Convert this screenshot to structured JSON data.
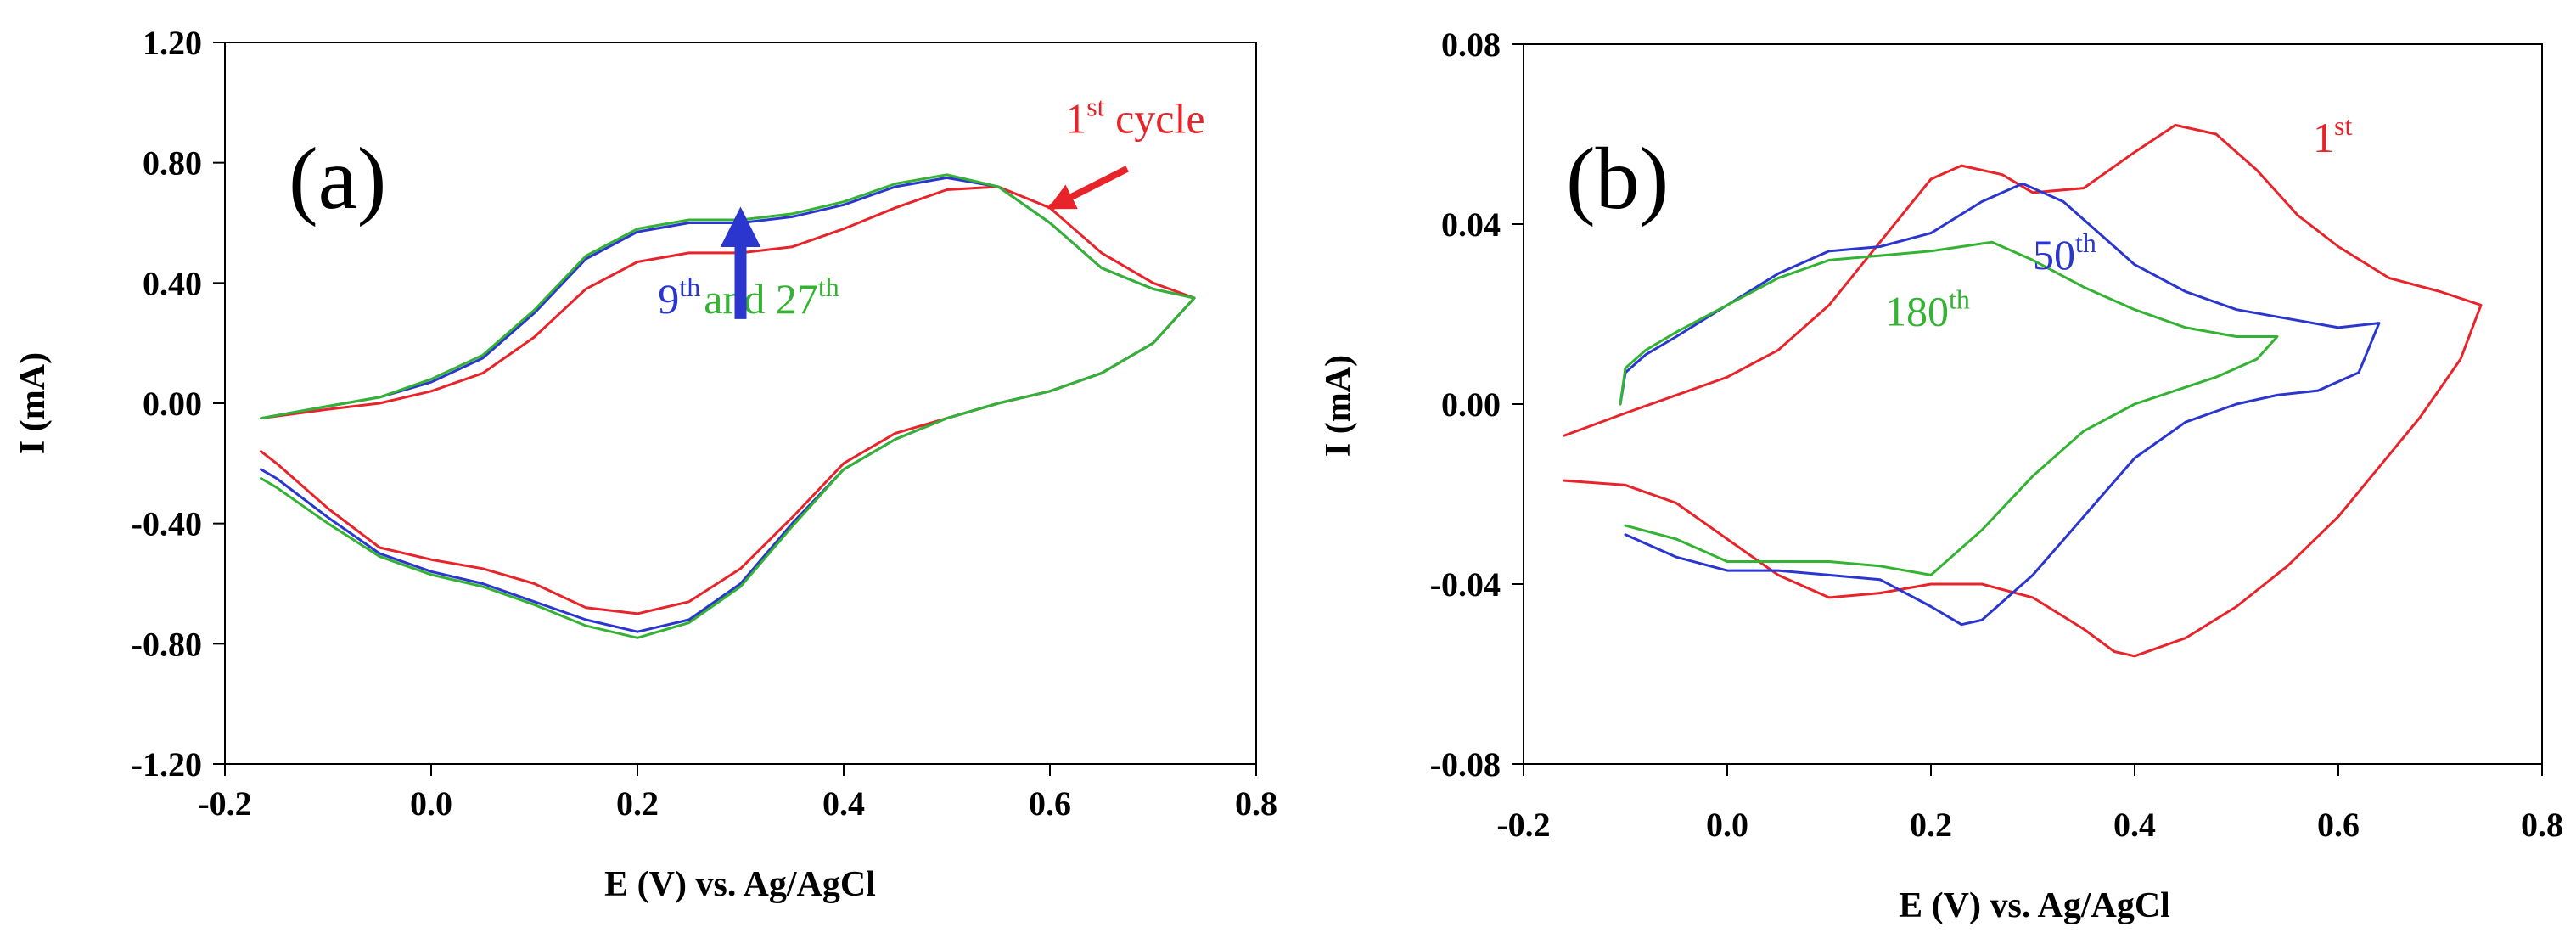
{
  "chart_data": [
    {
      "type": "line",
      "panel_label": "(a)",
      "xlabel": "E (V) vs. Ag/AgCl",
      "ylabel": "I (mA)",
      "xlim": [
        -0.2,
        0.8
      ],
      "ylim": [
        -1.2,
        1.2
      ],
      "xticks": [
        -0.2,
        0.0,
        0.2,
        0.4,
        0.6,
        0.8
      ],
      "yticks": [
        -1.2,
        -0.8,
        -0.4,
        0.0,
        0.4,
        0.8,
        1.2
      ],
      "xtick_labels": [
        "-0.2",
        "0.0",
        "0.2",
        "0.4",
        "0.6",
        "0.8"
      ],
      "ytick_labels": [
        "-1.20",
        "-0.80",
        "-0.40",
        "0.00",
        "0.40",
        "0.80",
        "1.20"
      ],
      "grid": false,
      "annotations": [
        {
          "id": "first",
          "base": "1",
          "sup": "st",
          "after": " cycle",
          "color": "#e8242b",
          "x": 0.615,
          "y": 0.9,
          "arrow": {
            "from": [
              0.675,
              0.78
            ],
            "to": [
              0.6,
              0.65
            ],
            "color": "#e8242b"
          }
        },
        {
          "id": "ninth",
          "base": "9",
          "sup": "th",
          "color": "#2b36cf",
          "x": 0.22,
          "y": 0.3
        },
        {
          "id": "and27",
          "base": " and 27",
          "sup": "th",
          "color": "#34b233",
          "x": 0.27,
          "y": 0.3
        },
        {
          "id": "bluearrow",
          "arrow": {
            "from": [
              0.3,
              0.28
            ],
            "to": [
              0.3,
              0.6
            ],
            "color": "#2b36cf"
          }
        }
      ],
      "series": [
        {
          "name": "1st cycle",
          "color": "#e8242b",
          "x": [
            -0.165,
            -0.1,
            -0.05,
            0.0,
            0.05,
            0.1,
            0.15,
            0.2,
            0.25,
            0.3,
            0.35,
            0.4,
            0.45,
            0.5,
            0.55,
            0.6,
            0.65,
            0.7,
            0.74,
            0.7,
            0.65,
            0.6,
            0.55,
            0.5,
            0.45,
            0.4,
            0.35,
            0.3,
            0.25,
            0.2,
            0.15,
            0.1,
            0.05,
            0.0,
            -0.05,
            -0.1,
            -0.15,
            -0.165
          ],
          "y": [
            -0.05,
            -0.02,
            0.0,
            0.04,
            0.1,
            0.22,
            0.38,
            0.47,
            0.5,
            0.5,
            0.52,
            0.58,
            0.65,
            0.71,
            0.72,
            0.65,
            0.5,
            0.4,
            0.35,
            0.2,
            0.1,
            0.04,
            0.0,
            -0.05,
            -0.1,
            -0.2,
            -0.38,
            -0.55,
            -0.66,
            -0.7,
            -0.68,
            -0.6,
            -0.55,
            -0.52,
            -0.48,
            -0.35,
            -0.2,
            -0.16
          ]
        },
        {
          "name": "9th",
          "color": "#2b36cf",
          "x": [
            -0.165,
            -0.1,
            -0.05,
            0.0,
            0.05,
            0.1,
            0.15,
            0.2,
            0.25,
            0.3,
            0.35,
            0.4,
            0.45,
            0.5,
            0.55,
            0.6,
            0.65,
            0.7,
            0.74,
            0.7,
            0.65,
            0.6,
            0.55,
            0.5,
            0.45,
            0.4,
            0.35,
            0.3,
            0.25,
            0.2,
            0.15,
            0.1,
            0.05,
            0.0,
            -0.05,
            -0.1,
            -0.15,
            -0.165
          ],
          "y": [
            -0.05,
            -0.01,
            0.02,
            0.07,
            0.15,
            0.3,
            0.48,
            0.57,
            0.6,
            0.6,
            0.62,
            0.66,
            0.72,
            0.75,
            0.72,
            0.6,
            0.45,
            0.38,
            0.35,
            0.2,
            0.1,
            0.04,
            0.0,
            -0.05,
            -0.12,
            -0.22,
            -0.4,
            -0.6,
            -0.72,
            -0.76,
            -0.72,
            -0.66,
            -0.6,
            -0.56,
            -0.5,
            -0.38,
            -0.25,
            -0.22
          ]
        },
        {
          "name": "27th",
          "color": "#34b233",
          "x": [
            -0.165,
            -0.1,
            -0.05,
            0.0,
            0.05,
            0.1,
            0.15,
            0.2,
            0.25,
            0.3,
            0.35,
            0.4,
            0.45,
            0.5,
            0.55,
            0.6,
            0.65,
            0.7,
            0.74,
            0.7,
            0.65,
            0.6,
            0.55,
            0.5,
            0.45,
            0.4,
            0.35,
            0.3,
            0.25,
            0.2,
            0.15,
            0.1,
            0.05,
            0.0,
            -0.05,
            -0.1,
            -0.15,
            -0.165
          ],
          "y": [
            -0.05,
            -0.01,
            0.02,
            0.08,
            0.16,
            0.31,
            0.49,
            0.58,
            0.61,
            0.61,
            0.63,
            0.67,
            0.73,
            0.76,
            0.72,
            0.6,
            0.45,
            0.38,
            0.35,
            0.2,
            0.1,
            0.04,
            0.0,
            -0.05,
            -0.12,
            -0.22,
            -0.41,
            -0.61,
            -0.73,
            -0.78,
            -0.74,
            -0.67,
            -0.61,
            -0.57,
            -0.51,
            -0.4,
            -0.28,
            -0.25
          ]
        }
      ]
    },
    {
      "type": "line",
      "panel_label": "(b)",
      "xlabel": "E (V) vs. Ag/AgCl",
      "ylabel": "I (mA)",
      "xlim": [
        -0.2,
        0.8
      ],
      "ylim": [
        -0.08,
        0.08
      ],
      "xticks": [
        -0.2,
        0.0,
        0.2,
        0.4,
        0.6,
        0.8
      ],
      "yticks": [
        -0.08,
        -0.04,
        0.0,
        0.04,
        0.08
      ],
      "xtick_labels": [
        "-0.2",
        "0.0",
        "0.2",
        "0.4",
        "0.6",
        "0.8"
      ],
      "ytick_labels": [
        "-0.08",
        "-0.04",
        "0.00",
        "0.04",
        "0.08"
      ],
      "grid": false,
      "annotations": [
        {
          "id": "first",
          "base": "1",
          "sup": "st",
          "color": "#e8242b",
          "x": 0.575,
          "y": 0.056
        },
        {
          "id": "fiftieth",
          "base": "50",
          "sup": "th",
          "color": "#2b36cf",
          "x": 0.3,
          "y": 0.03
        },
        {
          "id": "oneeightieth",
          "base": "180",
          "sup": "th",
          "color": "#34b233",
          "x": 0.155,
          "y": 0.0175
        }
      ],
      "series": [
        {
          "name": "1st",
          "color": "#e8242b",
          "x": [
            -0.16,
            -0.1,
            -0.05,
            0.0,
            0.05,
            0.1,
            0.15,
            0.2,
            0.23,
            0.27,
            0.3,
            0.35,
            0.4,
            0.44,
            0.48,
            0.52,
            0.56,
            0.6,
            0.65,
            0.7,
            0.74,
            0.72,
            0.68,
            0.64,
            0.6,
            0.55,
            0.5,
            0.45,
            0.4,
            0.38,
            0.35,
            0.3,
            0.25,
            0.2,
            0.15,
            0.1,
            0.05,
            0.0,
            -0.05,
            -0.1,
            -0.16
          ],
          "y": [
            -0.007,
            -0.002,
            0.002,
            0.006,
            0.012,
            0.022,
            0.036,
            0.05,
            0.053,
            0.051,
            0.047,
            0.048,
            0.056,
            0.062,
            0.06,
            0.052,
            0.042,
            0.035,
            0.028,
            0.025,
            0.022,
            0.01,
            -0.003,
            -0.014,
            -0.025,
            -0.036,
            -0.045,
            -0.052,
            -0.056,
            -0.055,
            -0.05,
            -0.043,
            -0.04,
            -0.04,
            -0.042,
            -0.043,
            -0.038,
            -0.03,
            -0.022,
            -0.018,
            -0.017
          ]
        },
        {
          "name": "50th",
          "color": "#2b36cf",
          "x": [
            -0.105,
            -0.1,
            -0.08,
            -0.05,
            0.0,
            0.05,
            0.1,
            0.15,
            0.2,
            0.25,
            0.29,
            0.33,
            0.37,
            0.4,
            0.45,
            0.5,
            0.55,
            0.6,
            0.64,
            0.62,
            0.58,
            0.54,
            0.5,
            0.45,
            0.4,
            0.35,
            0.3,
            0.25,
            0.23,
            0.2,
            0.15,
            0.1,
            0.05,
            0.0,
            -0.05,
            -0.1
          ],
          "y": [
            0.0,
            0.007,
            0.011,
            0.015,
            0.022,
            0.029,
            0.034,
            0.035,
            0.038,
            0.045,
            0.049,
            0.045,
            0.037,
            0.031,
            0.025,
            0.021,
            0.019,
            0.017,
            0.018,
            0.007,
            0.003,
            0.002,
            0.0,
            -0.004,
            -0.012,
            -0.025,
            -0.038,
            -0.048,
            -0.049,
            -0.045,
            -0.039,
            -0.038,
            -0.037,
            -0.037,
            -0.034,
            -0.029
          ]
        },
        {
          "name": "180th",
          "color": "#34b233",
          "x": [
            -0.105,
            -0.1,
            -0.08,
            -0.05,
            0.0,
            0.05,
            0.1,
            0.15,
            0.2,
            0.26,
            0.3,
            0.35,
            0.4,
            0.45,
            0.5,
            0.54,
            0.52,
            0.48,
            0.44,
            0.4,
            0.35,
            0.3,
            0.25,
            0.2,
            0.15,
            0.1,
            0.05,
            0.0,
            -0.05,
            -0.1
          ],
          "y": [
            0.0,
            0.008,
            0.012,
            0.016,
            0.022,
            0.028,
            0.032,
            0.033,
            0.034,
            0.036,
            0.032,
            0.026,
            0.021,
            0.017,
            0.015,
            0.015,
            0.01,
            0.006,
            0.003,
            0.0,
            -0.006,
            -0.016,
            -0.028,
            -0.038,
            -0.036,
            -0.035,
            -0.035,
            -0.035,
            -0.03,
            -0.027
          ]
        }
      ]
    }
  ]
}
